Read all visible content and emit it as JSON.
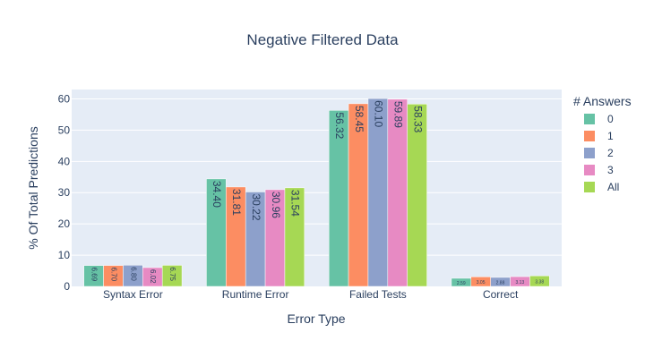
{
  "chart_data": {
    "type": "bar",
    "title": "Negative Filtered Data",
    "xlabel": "Error Type",
    "ylabel": "% Of Total Predictions",
    "categories": [
      "Syntax Error",
      "Runtime Error",
      "Failed Tests",
      "Correct"
    ],
    "ylim": [
      0,
      63
    ],
    "yticks": [
      0,
      10,
      20,
      30,
      40,
      50,
      60
    ],
    "grid": true,
    "legend_title": "# Answers",
    "legend_position": "right",
    "series": [
      {
        "name": "0",
        "color": "#66c2a5",
        "values": [
          6.69,
          34.4,
          56.32,
          2.59
        ],
        "labels": [
          "6.69",
          "34.40",
          "56.32",
          "2.59"
        ]
      },
      {
        "name": "1",
        "color": "#fc8d62",
        "values": [
          6.7,
          31.81,
          58.45,
          3.05
        ],
        "labels": [
          "6.70",
          "31.81",
          "58.45",
          "3.05"
        ]
      },
      {
        "name": "2",
        "color": "#8da0cb",
        "values": [
          6.8,
          30.22,
          60.1,
          2.88
        ],
        "labels": [
          "6.80",
          "30.22",
          "60.10",
          "2.88"
        ]
      },
      {
        "name": "3",
        "color": "#e78ac3",
        "values": [
          6.02,
          30.96,
          59.89,
          3.13
        ],
        "labels": [
          "6.02",
          "30.96",
          "59.89",
          "3.13"
        ]
      },
      {
        "name": "All",
        "color": "#a6d854",
        "values": [
          6.75,
          31.54,
          58.33,
          3.38
        ],
        "labels": [
          "6.75",
          "31.54",
          "58.33",
          "3.38"
        ]
      }
    ]
  }
}
